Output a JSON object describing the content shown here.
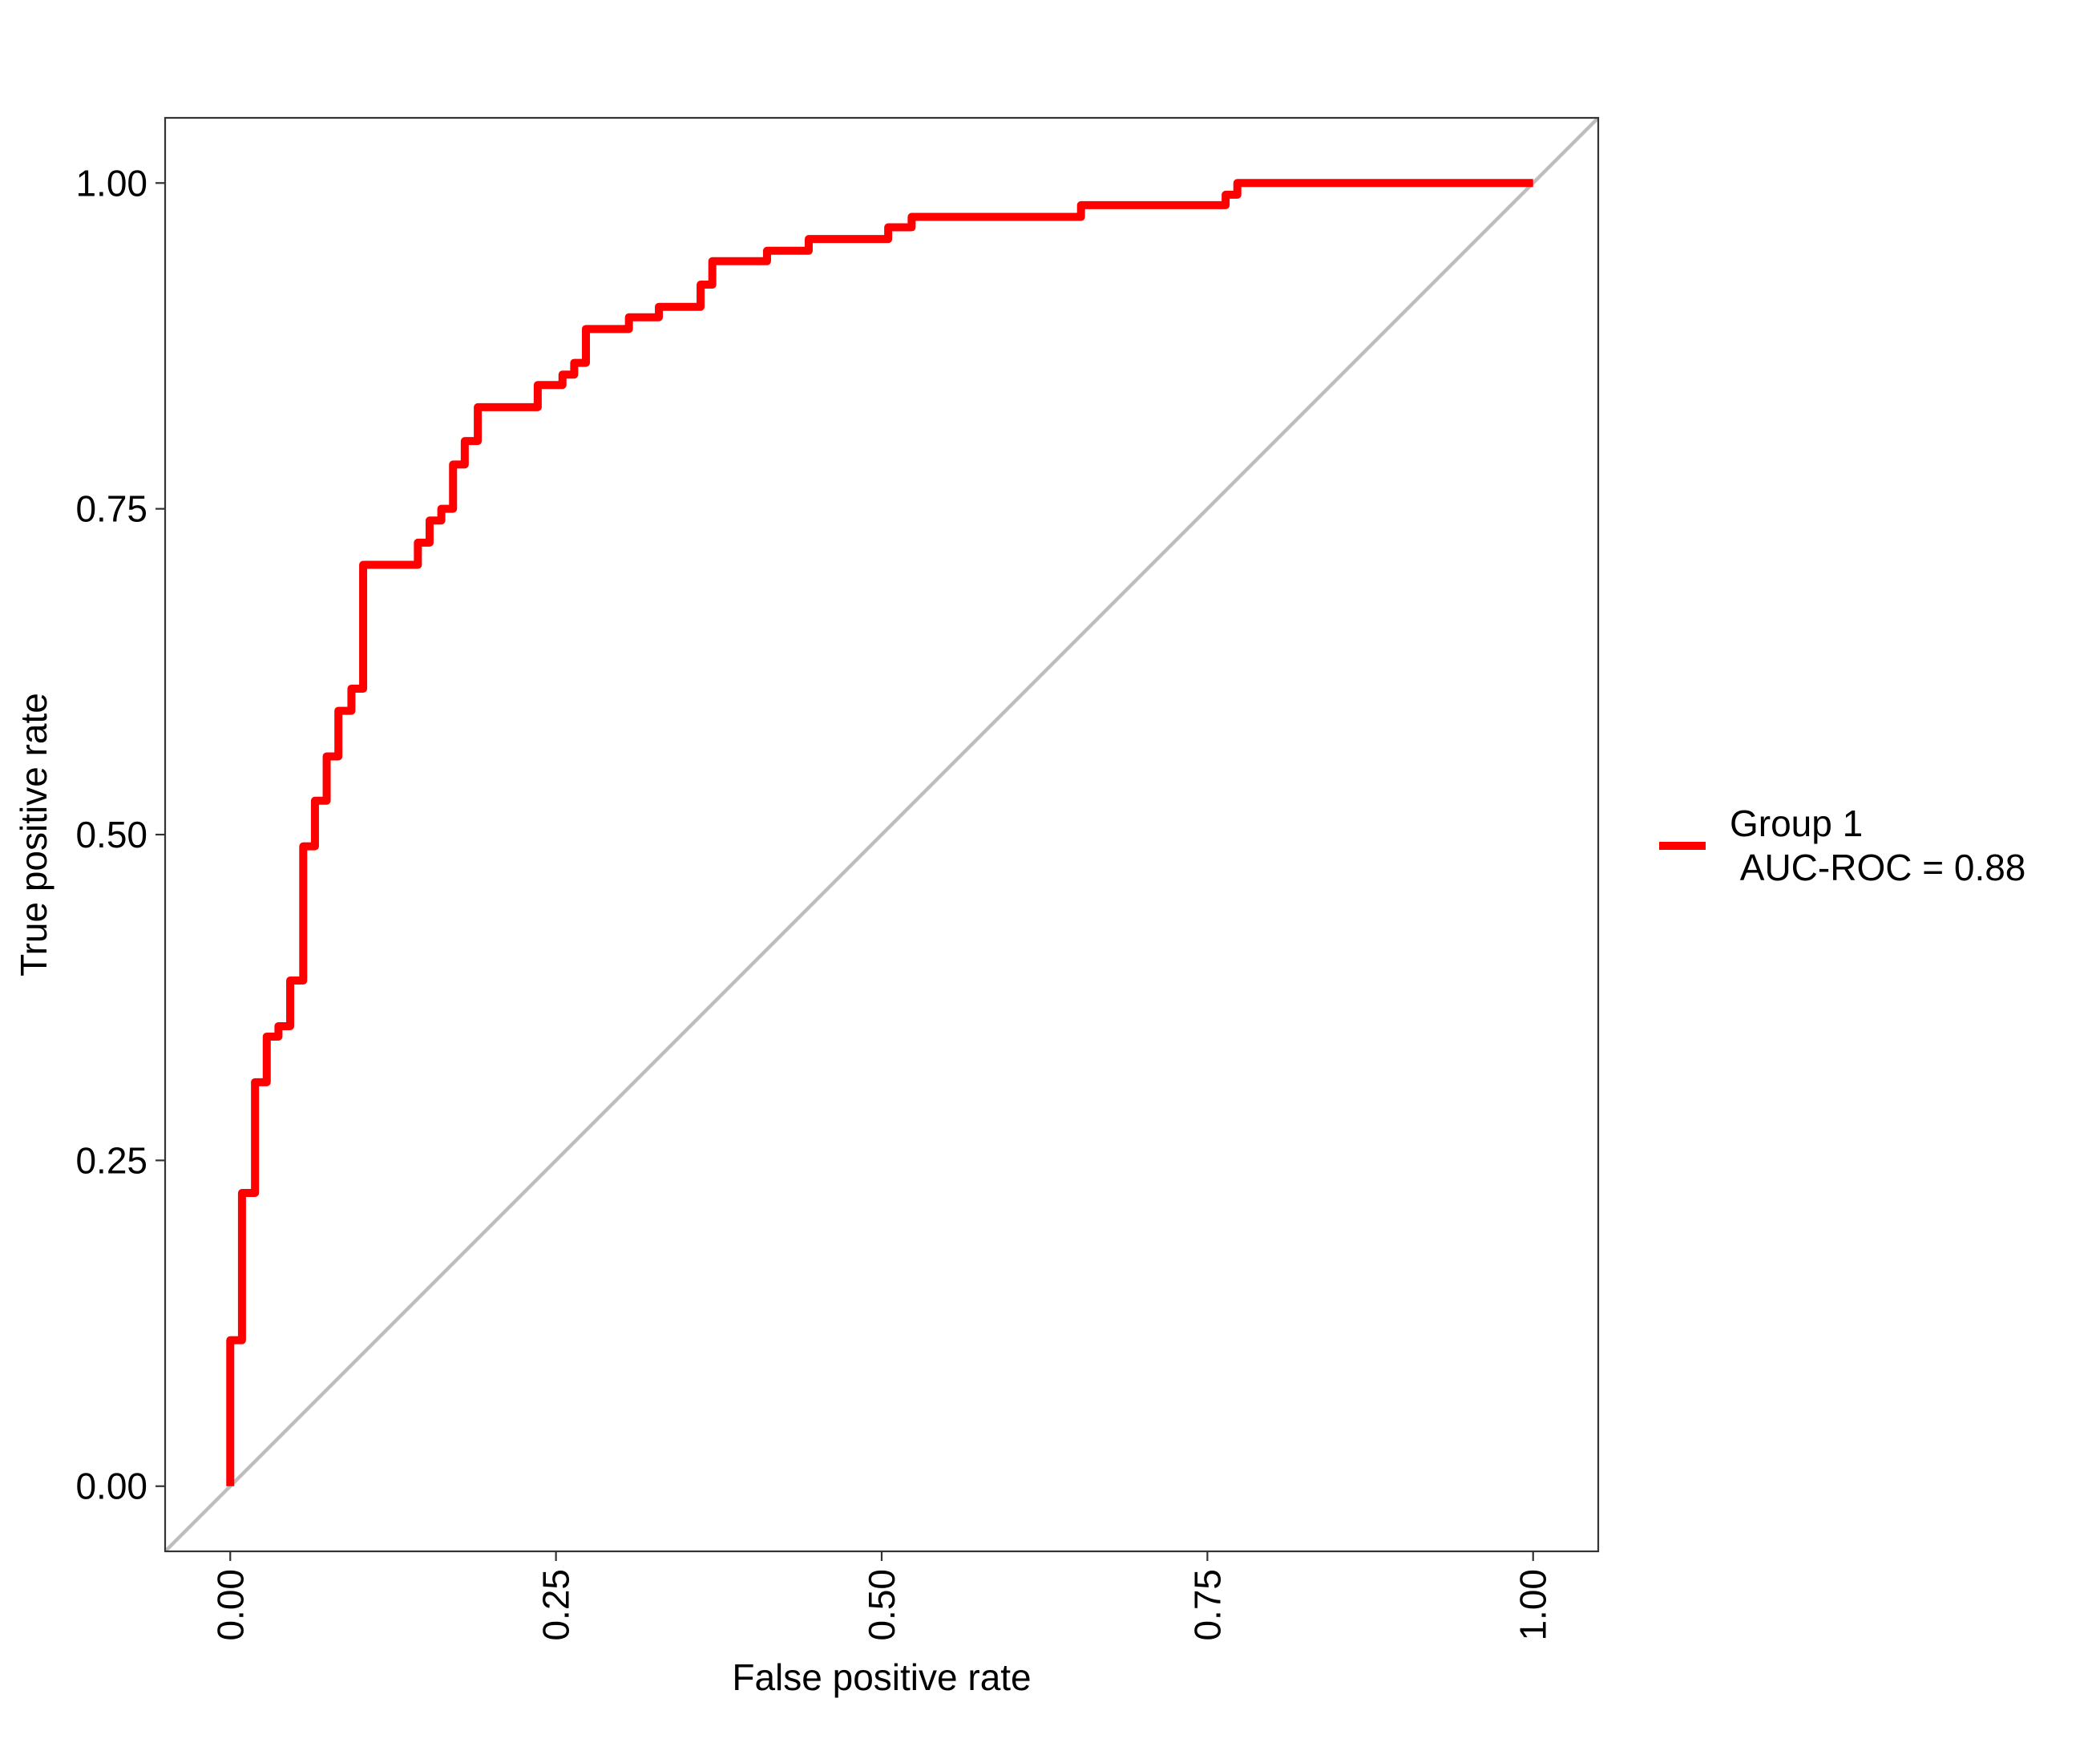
{
  "chart_data": {
    "type": "line",
    "title": "",
    "xlabel": "False positive rate",
    "ylabel": "True positive rate",
    "xlim": [
      -0.05,
      1.05
    ],
    "ylim": [
      -0.05,
      1.05
    ],
    "x_ticks": [
      0,
      0.25,
      0.5,
      0.75,
      1
    ],
    "x_tick_labels": [
      "0.00",
      "0.25",
      "0.50",
      "0.75",
      "1.00"
    ],
    "y_ticks": [
      0,
      0.25,
      0.5,
      0.75,
      1
    ],
    "y_tick_labels": [
      "0.00",
      "0.25",
      "0.50",
      "0.75",
      "1.00"
    ],
    "grid": false,
    "legend_position": "right",
    "series": [
      {
        "name": "Group 1\n AUC-ROC = 0.88",
        "color": "#ff0000",
        "step": true,
        "x": [
          0.0,
          0.0,
          0.009,
          0.009,
          0.019,
          0.019,
          0.028,
          0.028,
          0.037,
          0.037,
          0.046,
          0.046,
          0.056,
          0.056,
          0.065,
          0.065,
          0.074,
          0.074,
          0.083,
          0.083,
          0.093,
          0.093,
          0.102,
          0.102,
          0.111,
          0.111,
          0.144,
          0.144,
          0.153,
          0.153,
          0.162,
          0.162,
          0.171,
          0.171,
          0.18,
          0.18,
          0.19,
          0.19,
          0.236,
          0.236,
          0.255,
          0.255,
          0.264,
          0.264,
          0.273,
          0.273,
          0.306,
          0.306,
          0.329,
          0.329,
          0.361,
          0.361,
          0.37,
          0.37,
          0.412,
          0.412,
          0.444,
          0.444,
          0.505,
          0.505,
          0.523,
          0.523,
          0.653,
          0.653,
          0.764,
          0.764,
          0.773,
          0.773,
          1.0
        ],
        "y": [
          0.0,
          0.112,
          0.112,
          0.225,
          0.225,
          0.31,
          0.31,
          0.345,
          0.345,
          0.353,
          0.353,
          0.388,
          0.388,
          0.491,
          0.491,
          0.526,
          0.526,
          0.56,
          0.56,
          0.595,
          0.595,
          0.612,
          0.612,
          0.707,
          0.707,
          0.707,
          0.707,
          0.724,
          0.724,
          0.741,
          0.741,
          0.75,
          0.75,
          0.784,
          0.784,
          0.802,
          0.802,
          0.828,
          0.828,
          0.845,
          0.845,
          0.853,
          0.853,
          0.862,
          0.862,
          0.888,
          0.888,
          0.897,
          0.897,
          0.905,
          0.905,
          0.922,
          0.922,
          0.94,
          0.94,
          0.948,
          0.948,
          0.957,
          0.957,
          0.966,
          0.966,
          0.974,
          0.974,
          0.983,
          0.983,
          0.991,
          0.991,
          1.0,
          1.0
        ]
      }
    ],
    "reference_line": {
      "from": [
        -0.05,
        -0.05
      ],
      "to": [
        1.05,
        1.05
      ],
      "color": "#bebebe"
    }
  }
}
